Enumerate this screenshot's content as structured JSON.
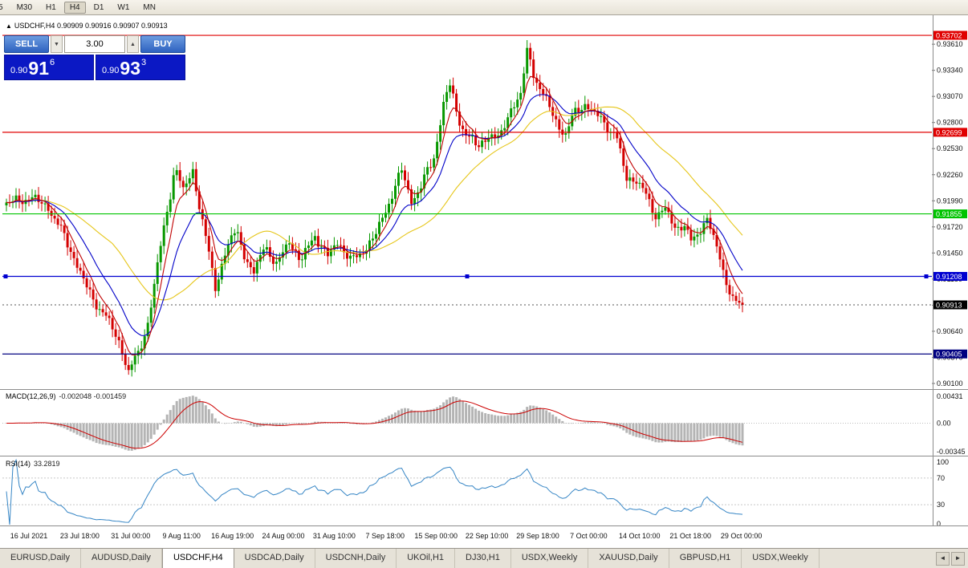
{
  "toolbar": {
    "items": [
      {
        "label": "5",
        "active": false,
        "clipped": true
      },
      {
        "label": "M30",
        "active": false
      },
      {
        "label": "H1",
        "active": false
      },
      {
        "label": "H4",
        "active": true
      },
      {
        "label": "D1",
        "active": false
      },
      {
        "label": "W1",
        "active": false
      },
      {
        "label": "MN",
        "active": false
      }
    ]
  },
  "chart": {
    "collapse_icon": "▲",
    "title_symbol": "USDCHF,H4",
    "ohlc": "0.90909 0.90916 0.90907 0.90913"
  },
  "one_click": {
    "sell_label": "SELL",
    "buy_label": "BUY",
    "lot": "3.00",
    "spin_down_icon": "▼",
    "spin_up_icon": "▲",
    "sell_price": {
      "prefix": "0.90",
      "big": "91",
      "sup": "6"
    },
    "buy_price": {
      "prefix": "0.90",
      "big": "93",
      "sup": "3"
    }
  },
  "chart_data": {
    "type": "candlestick",
    "symbol": "USDCHF",
    "timeframe": "H4",
    "price_min": 0.9005,
    "price_max": 0.93885,
    "candle_count": 230,
    "up_color": "#089800",
    "down_color": "#d40000",
    "current_price": 0.90913,
    "current_price_label": "0.90913",
    "waypoints": [
      [
        0.0,
        0.9195
      ],
      [
        0.029,
        0.9203
      ],
      [
        0.057,
        0.9193
      ],
      [
        0.089,
        0.9146
      ],
      [
        0.111,
        0.9105
      ],
      [
        0.133,
        0.9082
      ],
      [
        0.155,
        0.905
      ],
      [
        0.166,
        0.9022
      ],
      [
        0.179,
        0.904
      ],
      [
        0.193,
        0.9075
      ],
      [
        0.207,
        0.914
      ],
      [
        0.229,
        0.9235
      ],
      [
        0.24,
        0.9208
      ],
      [
        0.253,
        0.9232
      ],
      [
        0.269,
        0.9166
      ],
      [
        0.284,
        0.911
      ],
      [
        0.299,
        0.915
      ],
      [
        0.313,
        0.9168
      ],
      [
        0.335,
        0.912
      ],
      [
        0.351,
        0.9155
      ],
      [
        0.368,
        0.913
      ],
      [
        0.384,
        0.916
      ],
      [
        0.4,
        0.9135
      ],
      [
        0.419,
        0.9165
      ],
      [
        0.436,
        0.914
      ],
      [
        0.451,
        0.9158
      ],
      [
        0.469,
        0.9135
      ],
      [
        0.487,
        0.915
      ],
      [
        0.504,
        0.9166
      ],
      [
        0.52,
        0.9199
      ],
      [
        0.537,
        0.923
      ],
      [
        0.55,
        0.9199
      ],
      [
        0.564,
        0.9215
      ],
      [
        0.58,
        0.9241
      ],
      [
        0.594,
        0.93
      ],
      [
        0.602,
        0.932
      ],
      [
        0.613,
        0.9285
      ],
      [
        0.626,
        0.9268
      ],
      [
        0.64,
        0.9253
      ],
      [
        0.657,
        0.927
      ],
      [
        0.67,
        0.926
      ],
      [
        0.684,
        0.9295
      ],
      [
        0.698,
        0.9305
      ],
      [
        0.708,
        0.9355
      ],
      [
        0.717,
        0.933
      ],
      [
        0.727,
        0.9312
      ],
      [
        0.738,
        0.9295
      ],
      [
        0.749,
        0.9278
      ],
      [
        0.76,
        0.9268
      ],
      [
        0.774,
        0.9292
      ],
      [
        0.787,
        0.93
      ],
      [
        0.8,
        0.9288
      ],
      [
        0.815,
        0.9278
      ],
      [
        0.829,
        0.9265
      ],
      [
        0.842,
        0.9222
      ],
      [
        0.856,
        0.9222
      ],
      [
        0.869,
        0.9203
      ],
      [
        0.883,
        0.9183
      ],
      [
        0.894,
        0.9194
      ],
      [
        0.907,
        0.9168
      ],
      [
        0.92,
        0.9178
      ],
      [
        0.931,
        0.9155
      ],
      [
        0.942,
        0.9165
      ],
      [
        0.953,
        0.9186
      ],
      [
        0.964,
        0.915
      ],
      [
        0.975,
        0.9122
      ],
      [
        0.986,
        0.91
      ],
      [
        1.0,
        0.9091
      ]
    ],
    "moving_averages": [
      {
        "period": 34,
        "type": "sma",
        "color": "#e6c619"
      },
      {
        "period": 15,
        "type": "ema",
        "color": "#0000c8"
      },
      {
        "period": 6,
        "type": "ema",
        "color": "#c00000"
      }
    ],
    "hlines": [
      {
        "price": 0.93702,
        "label": "0.93702",
        "color": "#e00000",
        "handles": false
      },
      {
        "price": 0.92699,
        "label": "0.92699",
        "color": "#e00000",
        "handles": false
      },
      {
        "price": 0.91855,
        "label": "0.91855",
        "color": "#00c400",
        "handles": false
      },
      {
        "price": 0.91208,
        "label": "0.91208",
        "color": "#0000d0",
        "handles": true
      },
      {
        "price": 0.90405,
        "label": "0.90405",
        "color": "#000080",
        "handles": false
      }
    ],
    "axis_ticks": [
      "0.93610",
      "0.93340",
      "0.93070",
      "0.92800",
      "0.92530",
      "0.92260",
      "0.91990",
      "0.91720",
      "0.91450",
      "0.91180",
      "0.90910",
      "0.90640",
      "0.90370",
      "0.90100"
    ],
    "time_labels": [
      "16 Jul 2021",
      "23 Jul 18:00",
      "31 Jul 00:00",
      "9 Aug 11:00",
      "16 Aug 19:00",
      "24 Aug 00:00",
      "31 Aug 10:00",
      "7 Sep 18:00",
      "15 Sep 00:00",
      "22 Sep 10:00",
      "29 Sep 18:00",
      "7 Oct 00:00",
      "14 Oct 10:00",
      "21 Oct 18:00",
      "29 Oct 00:00"
    ],
    "macd": {
      "label": "MACD(12,26,9)",
      "values": "-0.002048 -0.001459",
      "fast": 12,
      "slow": 26,
      "signal": 9,
      "axis_max": "0.00431",
      "axis_zero": "0.00",
      "axis_min": "-0.00345",
      "hist_color": "#b4b4b4",
      "signal_color": "#cc0000"
    },
    "rsi": {
      "label": "RSI(14)",
      "value": "33.2819",
      "period": 14,
      "color": "#3585c5",
      "levels": [
        70,
        30
      ],
      "axis": [
        "100",
        "70",
        "30",
        "0"
      ]
    }
  },
  "tabs": {
    "items": [
      {
        "label": "EURUSD,Daily",
        "active": false
      },
      {
        "label": "AUDUSD,Daily",
        "active": false
      },
      {
        "label": "USDCHF,H4",
        "active": true
      },
      {
        "label": "USDCAD,Daily",
        "active": false
      },
      {
        "label": "USDCNH,Daily",
        "active": false
      },
      {
        "label": "UKOil,H1",
        "active": false
      },
      {
        "label": "DJ30,H1",
        "active": false
      },
      {
        "label": "USDX,Weekly",
        "active": false
      },
      {
        "label": "XAUUSD,Daily",
        "active": false
      },
      {
        "label": "GBPUSD,H1",
        "active": false
      },
      {
        "label": "USDX,Weekly",
        "active": false
      }
    ],
    "scroll_left": "◄",
    "scroll_right": "►"
  }
}
